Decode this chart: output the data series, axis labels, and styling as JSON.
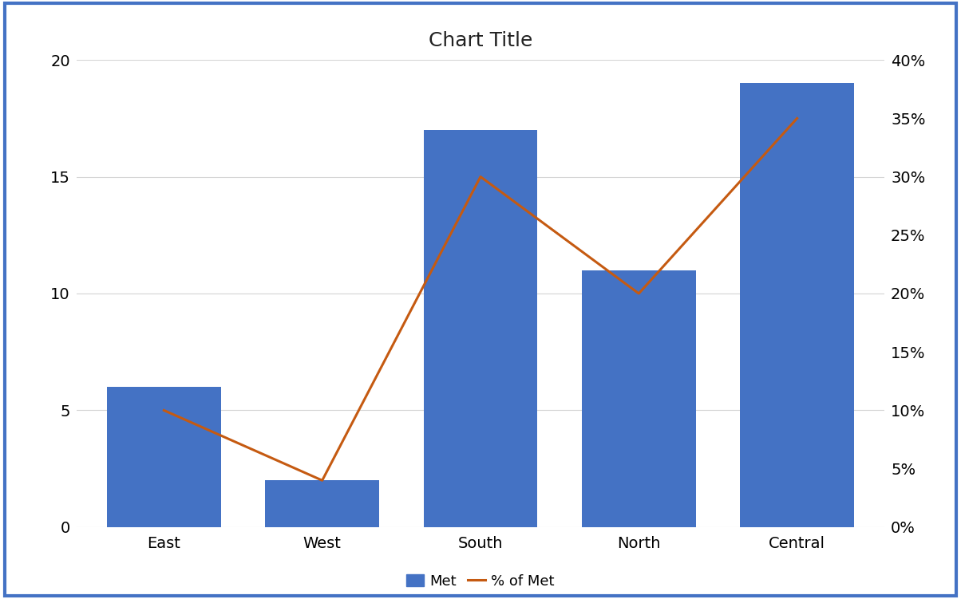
{
  "categories": [
    "East",
    "West",
    "South",
    "North",
    "Central"
  ],
  "bar_values": [
    6,
    2,
    17,
    11,
    19
  ],
  "line_values": [
    0.1,
    0.04,
    0.3,
    0.2,
    0.35
  ],
  "bar_color": "#4472C4",
  "line_color": "#C55A11",
  "title": "Chart Title",
  "title_fontsize": 18,
  "left_ylim": [
    0,
    20
  ],
  "right_ylim": [
    0,
    0.4
  ],
  "left_yticks": [
    0,
    5,
    10,
    15,
    20
  ],
  "right_yticks": [
    0.0,
    0.05,
    0.1,
    0.15,
    0.2,
    0.25,
    0.3,
    0.35,
    0.4
  ],
  "legend_labels": [
    "Met",
    "% of Met"
  ],
  "background_color": "#ffffff",
  "border_color": "#4472C4",
  "grid_color": "#d4d4d4",
  "tick_fontsize": 14,
  "legend_fontsize": 13,
  "line_width": 2.2,
  "bar_width": 0.72
}
